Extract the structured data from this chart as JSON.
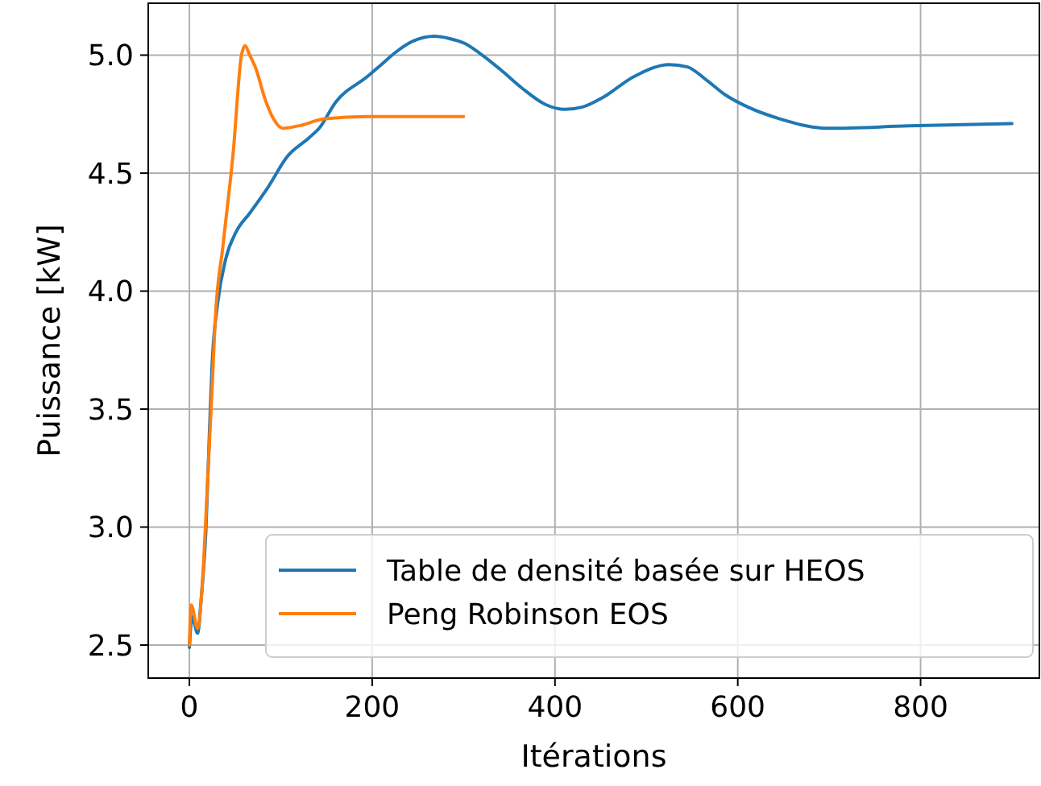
{
  "chart_data": {
    "type": "line",
    "xlabel": "Itérations",
    "ylabel": "Puissance [kW]",
    "xlim": [
      -45,
      930
    ],
    "ylim": [
      2.36,
      5.22
    ],
    "xticks": [
      0,
      200,
      400,
      600,
      800
    ],
    "yticks": [
      {
        "value": 2.5,
        "label": "2.5"
      },
      {
        "value": 3,
        "label": "3.0"
      },
      {
        "value": 3.5,
        "label": "3.5"
      },
      {
        "value": 4,
        "label": "4.0"
      },
      {
        "value": 4.5,
        "label": "4.5"
      },
      {
        "value": 5,
        "label": "5.0"
      }
    ],
    "grid": true,
    "legend": "bottom right",
    "line_style": "solid",
    "marker": "none",
    "series": [
      {
        "name": "Table de densité basée sur HEOS",
        "color": "#1f77b4",
        "x": [
          0,
          3,
          9,
          13,
          18,
          22,
          25,
          31,
          40,
          51,
          66,
          86,
          107,
          131,
          142,
          160,
          195,
          210,
          225,
          245,
          268,
          285,
          301,
          317,
          340,
          364,
          390,
          411,
          430,
          452,
          487,
          525,
          545,
          564,
          587,
          611,
          646,
          699,
          787,
          900
        ],
        "values": [
          2.49,
          2.62,
          2.55,
          2.7,
          2.98,
          3.41,
          3.7,
          3.95,
          4.14,
          4.25,
          4.33,
          4.44,
          4.57,
          4.65,
          4.69,
          4.8,
          4.91,
          4.96,
          5.01,
          5.06,
          5.08,
          5.07,
          5.05,
          5.01,
          4.94,
          4.86,
          4.79,
          4.77,
          4.78,
          4.82,
          4.91,
          4.96,
          4.95,
          4.9,
          4.83,
          4.78,
          4.73,
          4.69,
          4.7,
          4.71
        ]
      },
      {
        "name": "Peng Robinson EOS",
        "color": "#ff7f0e",
        "x": [
          0,
          2,
          9,
          14,
          20,
          25,
          28,
          37,
          48,
          57,
          61,
          66,
          72,
          84,
          92,
          102,
          119,
          148,
          195,
          300
        ],
        "values": [
          2.5,
          2.67,
          2.57,
          2.75,
          3.2,
          3.6,
          3.86,
          4.2,
          4.59,
          5.0,
          5.04,
          5.0,
          4.95,
          4.8,
          4.73,
          4.69,
          4.7,
          4.73,
          4.74,
          4.74
        ]
      }
    ]
  }
}
